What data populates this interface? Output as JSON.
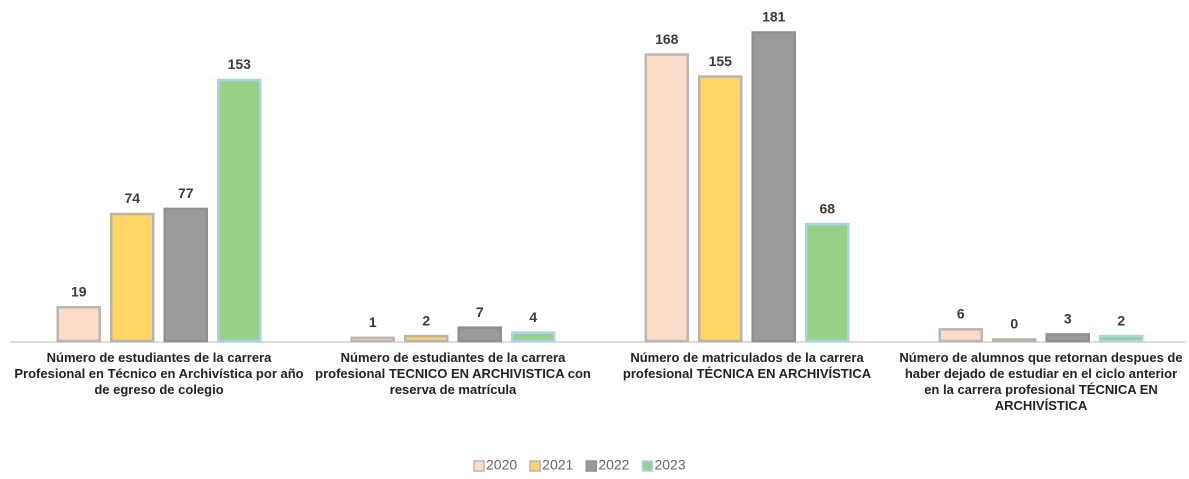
{
  "chart_data": {
    "type": "bar",
    "categories": [
      "Número de estudiantes de la carrera Profesional en Técnico en Archivística por  año de egreso de colegio",
      "Número de estudiantes de la carrera profesional TECNICO EN ARCHIVISTICA con reserva de matrícula",
      "Número de matriculados de la carrera profesional TÉCNICA EN ARCHIVÍSTICA",
      "Número de alumnos que retornan despues de haber dejado de estudiar en el ciclo anterior en la carrera profesional TÉCNICA EN ARCHIVÍSTICA"
    ],
    "series": [
      {
        "name": "2020",
        "color": "#fadcc8",
        "stroke": "#bdb6b0",
        "values": [
          19,
          1,
          168,
          6
        ]
      },
      {
        "name": "2021",
        "color": "#fdd466",
        "stroke": "#b9b4a8",
        "values": [
          74,
          2,
          155,
          0
        ]
      },
      {
        "name": "2022",
        "color": "#9b9b9b",
        "stroke": "#8f8f8f",
        "values": [
          77,
          7,
          181,
          3
        ]
      },
      {
        "name": "2023",
        "color": "#98d08a",
        "stroke": "#a9d4e8",
        "values": [
          153,
          4,
          68,
          2
        ]
      }
    ],
    "legend": "bottom"
  }
}
